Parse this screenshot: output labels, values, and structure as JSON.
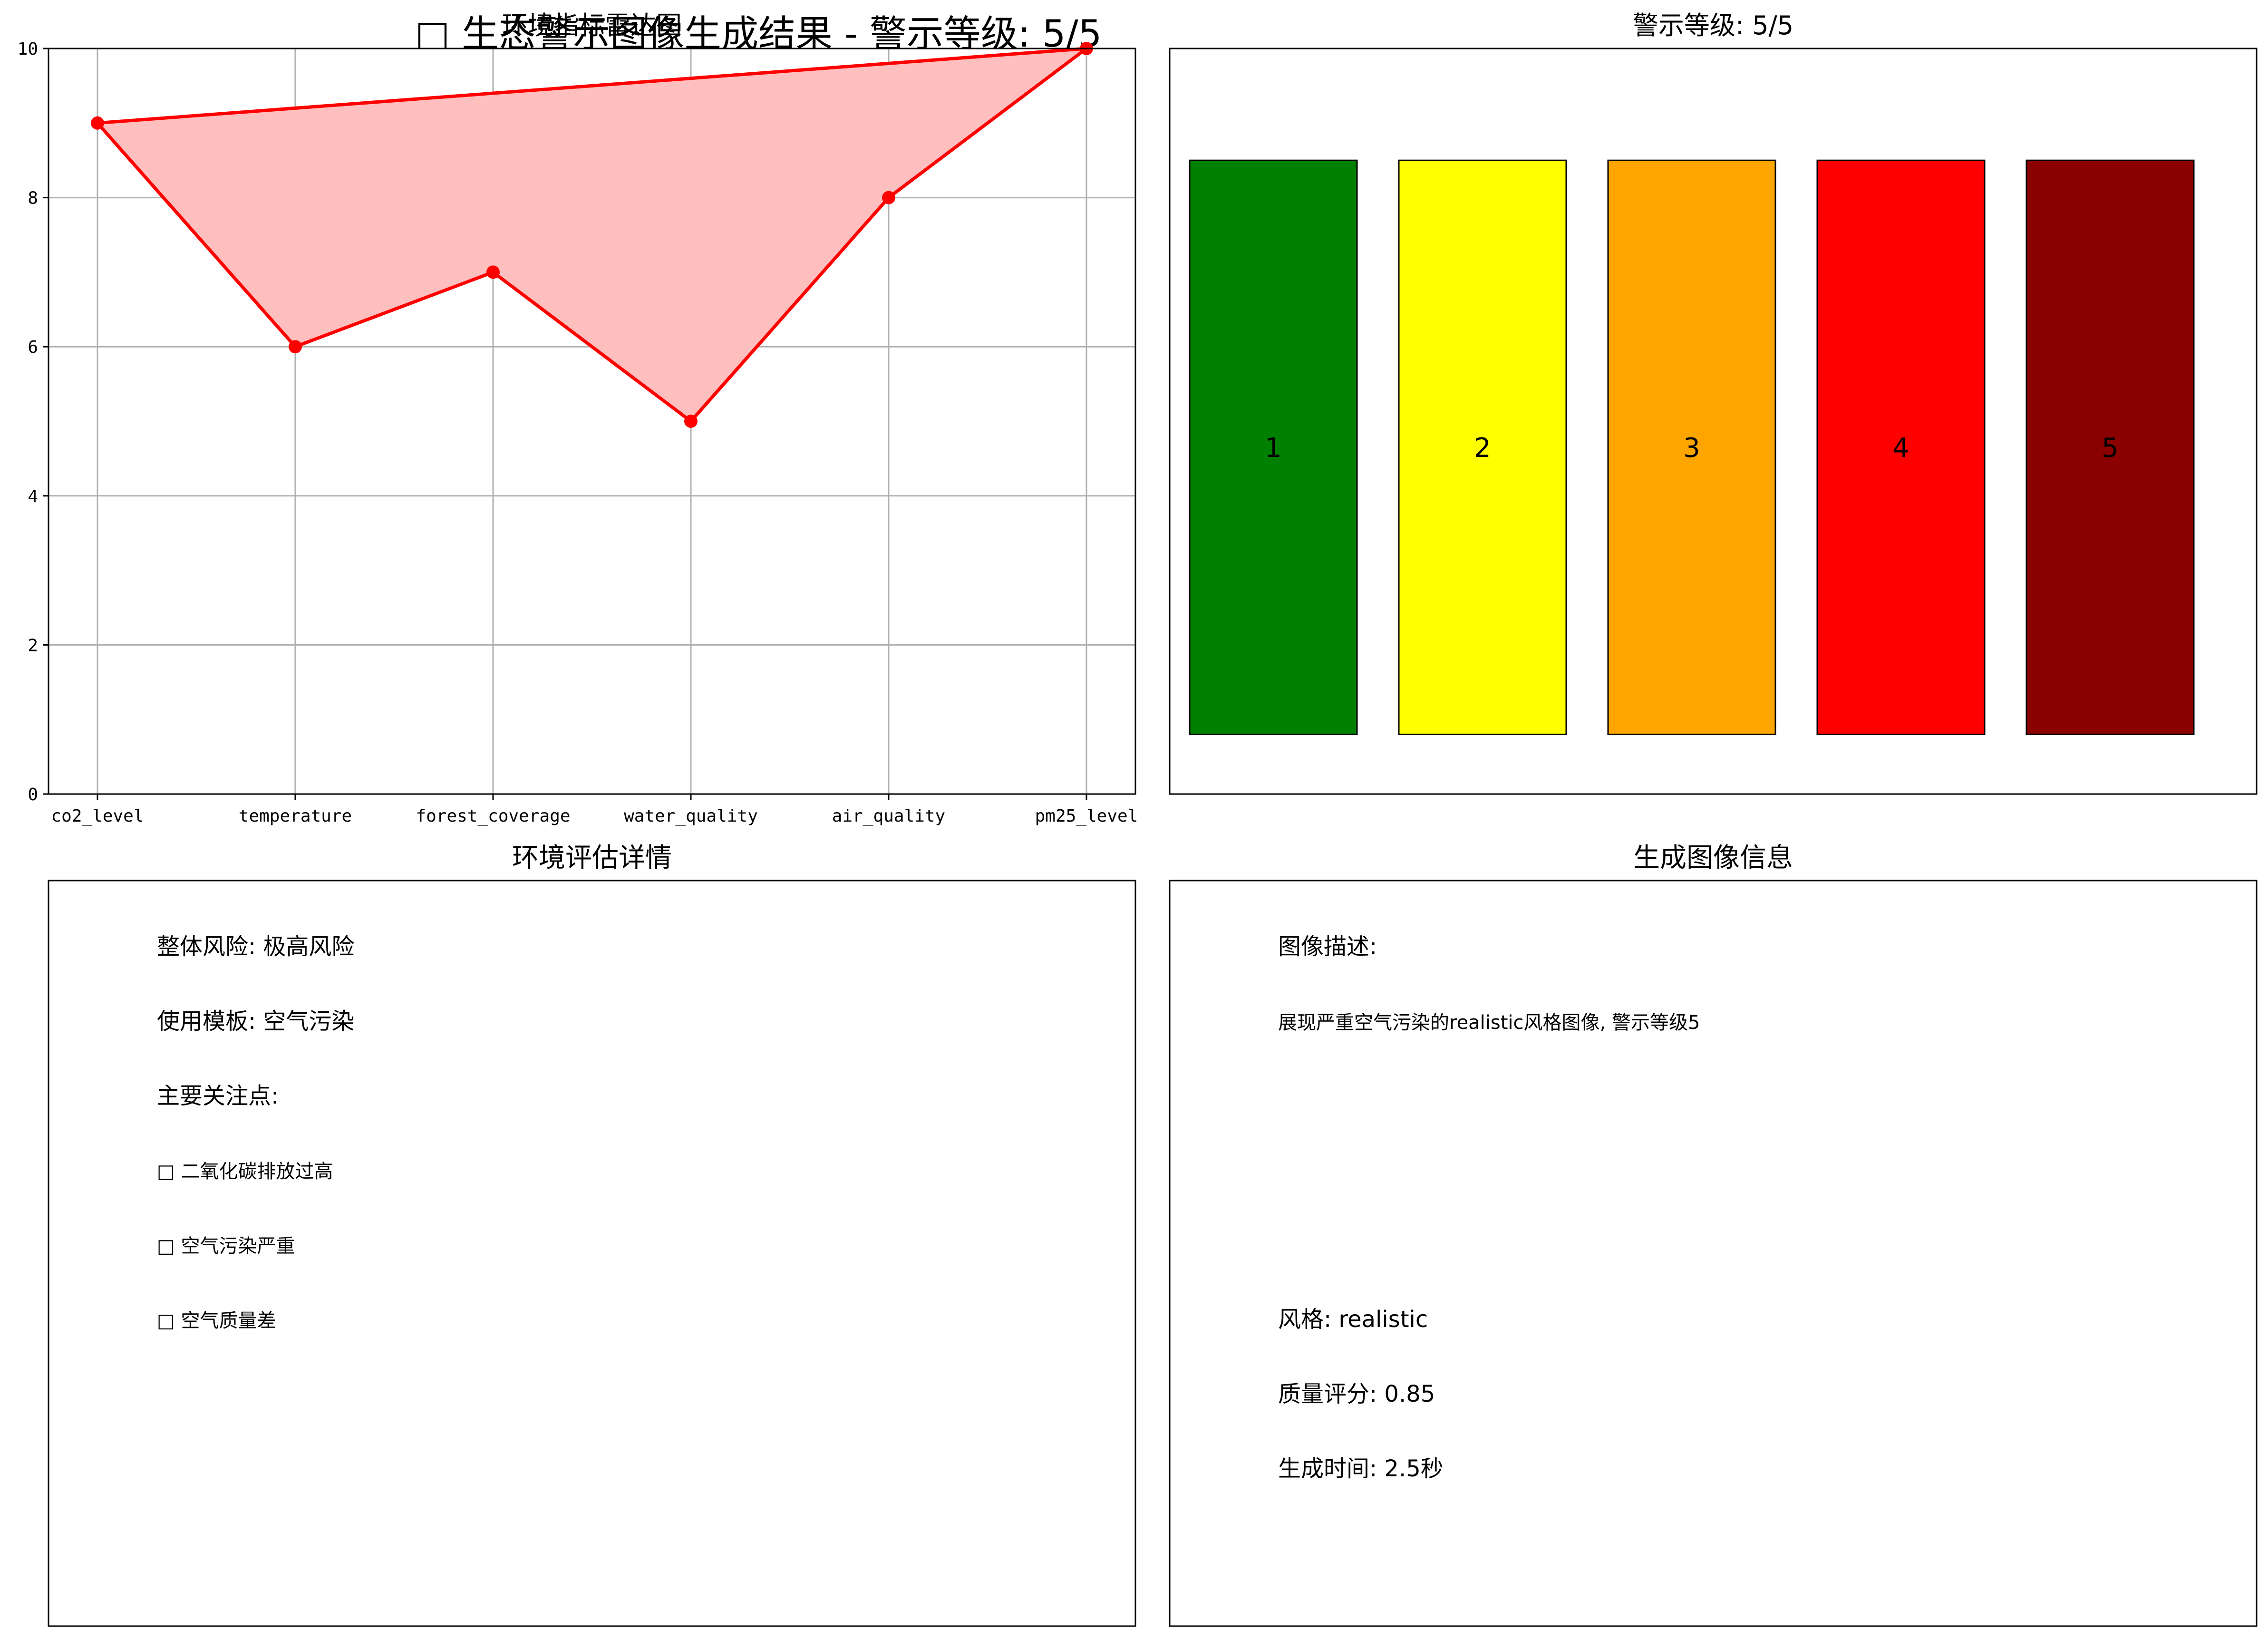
{
  "figure": {
    "suptitle": "□ 生态警示图像生成结果 - 警示等级: 5/5"
  },
  "colors": {
    "radar_line": "#ff0000",
    "radar_fill": "#ffbfbf",
    "grid": "#b0b0b0",
    "level_colors": [
      "#008000",
      "#ffff00",
      "#ffa500",
      "#ff0000",
      "#8b0000"
    ]
  },
  "chart_data": [
    {
      "type": "line",
      "title": "环境指标雷达图",
      "categories": [
        "co2_level",
        "temperature",
        "forest_coverage",
        "water_quality",
        "air_quality",
        "pm25_level"
      ],
      "values": [
        9,
        6,
        7,
        5,
        8,
        10
      ],
      "closed": true,
      "filled": true,
      "ylim": [
        0,
        10
      ],
      "yticks": [
        0,
        2,
        4,
        6,
        8,
        10
      ],
      "grid": true
    },
    {
      "type": "bar",
      "title": "警示等级: 5/5",
      "categories": [
        "1",
        "2",
        "3",
        "4",
        "5"
      ],
      "values": [
        1,
        1,
        1,
        1,
        1
      ],
      "bar_labels": [
        "1",
        "2",
        "3",
        "4",
        "5"
      ],
      "axes_visible": false
    }
  ],
  "details": {
    "title": "环境评估详情",
    "risk": "整体风险: 极高风险",
    "template": "使用模板: 空气污染",
    "focus_header": "主要关注点:",
    "focus_items": [
      "□ 二氧化碳排放过高",
      "□ 空气污染严重",
      "□ 空气质量差"
    ]
  },
  "image_info": {
    "title": "生成图像信息",
    "desc_header": "图像描述:",
    "description": "展现严重空气污染的realistic风格图像, 警示等级5",
    "style": "风格: realistic",
    "quality": "质量评分: 0.85",
    "gen_time": "生成时间: 2.5秒"
  }
}
